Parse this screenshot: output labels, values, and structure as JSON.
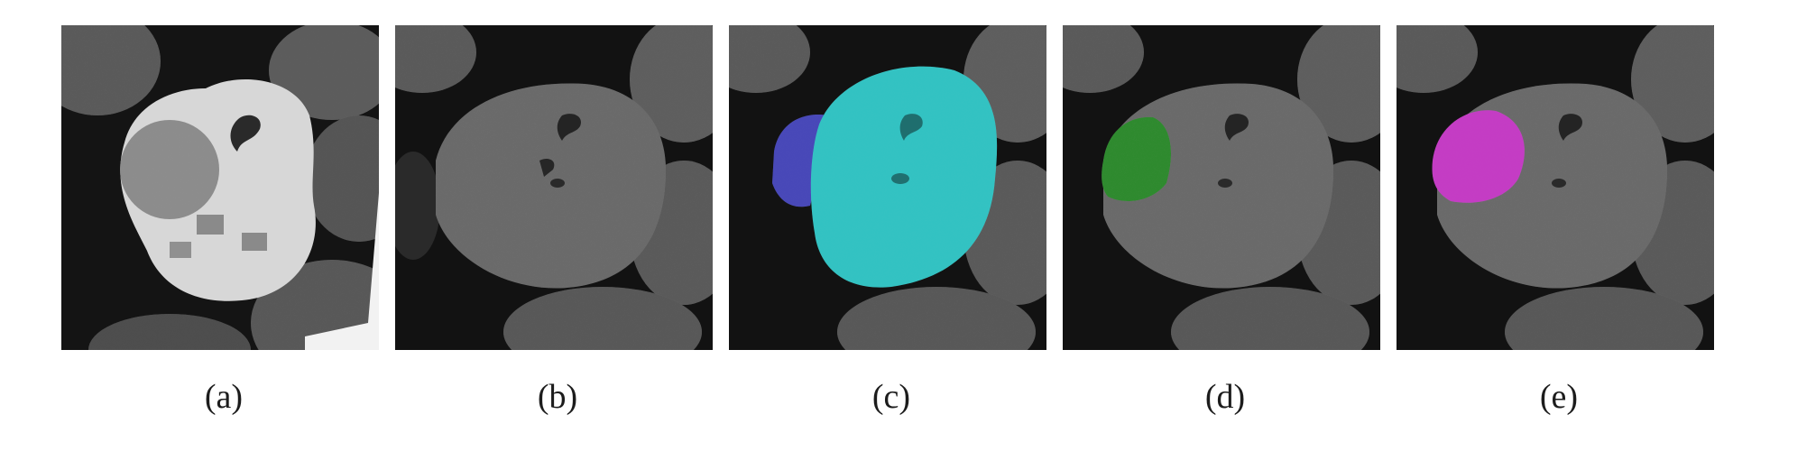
{
  "figure": {
    "panels": [
      {
        "caption": "(a)",
        "content": "contrast-enhanced CT slice of kidney"
      },
      {
        "caption": "(b)",
        "content": "non-contrast CT slice of kidney"
      },
      {
        "caption": "(c)",
        "content": "segmentation overlay: kidney (cyan) and tumor (blue)"
      },
      {
        "caption": "(d)",
        "content": "segmentation overlay: tumor (green)"
      },
      {
        "caption": "(e)",
        "content": "segmentation overlay: tumor (magenta)"
      }
    ],
    "colors": {
      "kidney_overlay": "#33c2c2",
      "tumor_overlay_c": "#4848b8",
      "tumor_overlay_d": "#2e8a2e",
      "tumor_overlay_e": "#c43cc4"
    }
  }
}
